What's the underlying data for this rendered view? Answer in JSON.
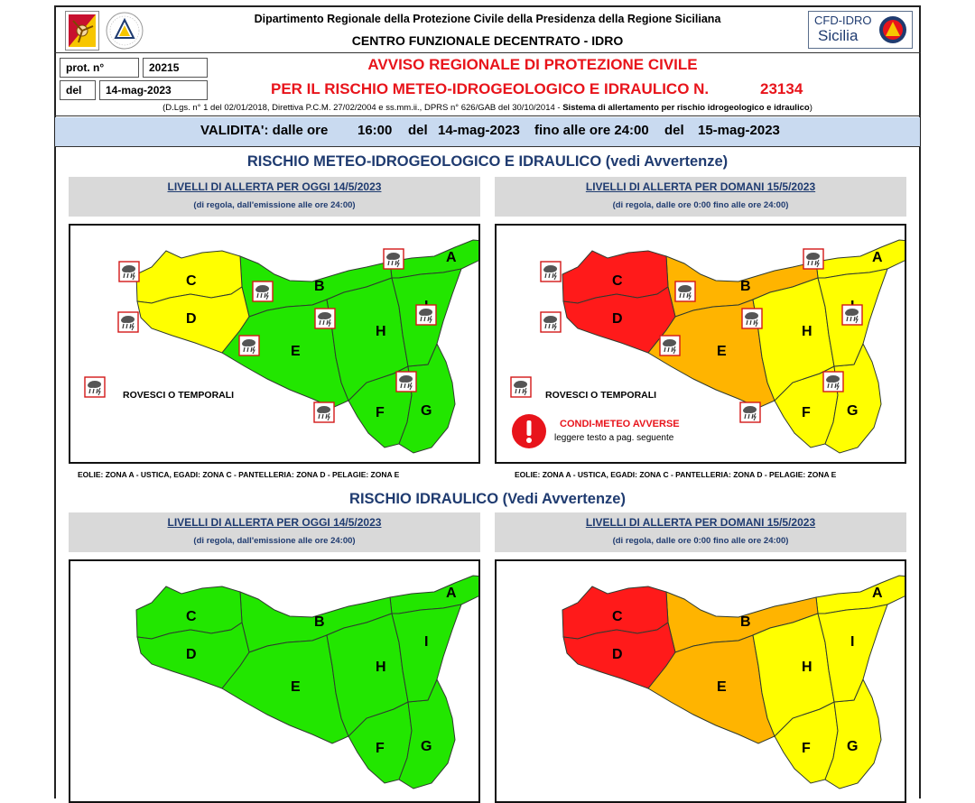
{
  "header": {
    "line1": "Dipartimento Regionale della Protezione Civile della Presidenza della Regione Siciliana",
    "line2": "CENTRO FUNZIONALE DECENTRATO - IDRO",
    "logo_right_top": "CFD-IDRO",
    "logo_right_bottom": "Sicilia"
  },
  "protocol": {
    "prot_label": "prot. n°",
    "prot_value": "20215",
    "del_label": "del",
    "del_value": "14-mag-2023"
  },
  "notice": {
    "title1": "AVVISO REGIONALE DI PROTEZIONE CIVILE",
    "title2": "PER IL RISCHIO METEO-IDROGEOLOGICO E IDRAULICO N.",
    "number": "23134",
    "legal_plain": "(D.Lgs. n° 1 del 02/01/2018, Direttiva P.C.M. 27/02/2004 e ss.mm.ii., DPRS n° 626/GAB del 30/10/2014 - ",
    "legal_bold": "Sistema di allertamento per rischio idrogeologico e idraulico",
    "legal_end": ")"
  },
  "validity": {
    "label": "VALIDITA': dalle ore",
    "from_time": "16:00",
    "del1": "del",
    "from_date": "14-mag-2023",
    "until": "fino alle ore 24:00",
    "del2": "del",
    "to_date": "15-mag-2023"
  },
  "section1": {
    "title_bold": "RISCHIO METEO-IDROGEOLOGICO E IDRAULICO",
    "title_rest": "(vedi Avvertenze)"
  },
  "section2": {
    "title_bold": "RISCHIO IDRAULICO",
    "title_rest": "(Vedi Avvertenze)"
  },
  "panels": {
    "today_title": "LIVELLI DI ALLERTA PER OGGI 14/5/2023",
    "today_sub": "(di regola, dall'emissione alle ore 24:00)",
    "tomorrow_title": "LIVELLI DI ALLERTA PER DOMANI 15/5/2023",
    "tomorrow_sub": "(di regola, dalle ore 0:00 fino alle ore 24:00)"
  },
  "legend": {
    "storms": "ROVESCI O TEMPORALI",
    "adverse_title": "CONDI-METEO AVVERSE",
    "adverse_sub": "leggere testo a pag. seguente"
  },
  "islands_note": "EOLIE: ZONA A - USTICA, EGADI: ZONA C - PANTELLERIA: ZONA D - PELAGIE: ZONA E",
  "zones": [
    "A",
    "B",
    "C",
    "D",
    "E",
    "F",
    "G",
    "H",
    "I"
  ],
  "colors": {
    "green": "#22e600",
    "yellow": "#ffff00",
    "orange": "#ffb400",
    "red": "#ff1a1a",
    "validity_bg": "#c9daf0",
    "panel_gray": "#d9d9d9",
    "title_navy": "#1f3b70",
    "title_red": "#e8141b"
  },
  "alert_levels": {
    "meteo_today": {
      "A": "green",
      "B": "green",
      "C": "yellow",
      "D": "yellow",
      "E": "green",
      "F": "green",
      "G": "green",
      "H": "green",
      "I": "green"
    },
    "meteo_tomorrow": {
      "A": "yellow",
      "B": "orange",
      "C": "red",
      "D": "red",
      "E": "orange",
      "F": "yellow",
      "G": "yellow",
      "H": "yellow",
      "I": "yellow"
    },
    "idro_today": {
      "A": "green",
      "B": "green",
      "C": "green",
      "D": "green",
      "E": "green",
      "F": "green",
      "G": "green",
      "H": "green",
      "I": "green"
    },
    "idro_tomorrow": {
      "A": "yellow",
      "B": "orange",
      "C": "red",
      "D": "red",
      "E": "orange",
      "F": "yellow",
      "G": "yellow",
      "H": "yellow",
      "I": "yellow"
    }
  },
  "icons": {
    "storm": "storm-cloud-icon",
    "warning": "exclamation-warning-icon",
    "region_logo": "sicily-trinacria-logo",
    "civil_protection_logo": "protezione-civile-logo",
    "cfd_logo": "cfd-idro-logo"
  }
}
